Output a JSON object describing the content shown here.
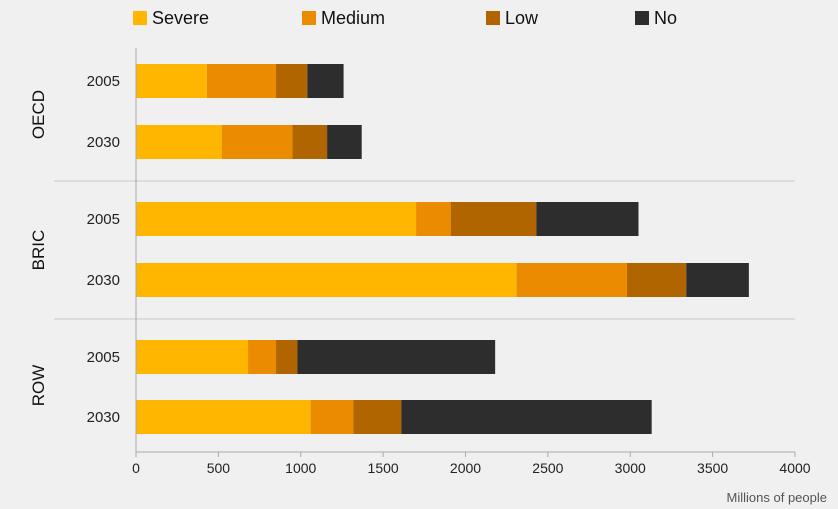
{
  "chart_data": {
    "type": "bar",
    "orientation": "horizontal",
    "stacked": true,
    "xlabel": "Millions of people",
    "xlim": [
      0,
      4000
    ],
    "xticks": [
      0,
      500,
      1000,
      1500,
      2000,
      2500,
      3000,
      3500,
      4000
    ],
    "legend_position": "top",
    "groups": [
      {
        "name": "OECD",
        "categories": [
          "2005",
          "2030"
        ]
      },
      {
        "name": "BRIC",
        "categories": [
          "2005",
          "2030"
        ]
      },
      {
        "name": "ROW",
        "categories": [
          "2005",
          "2030"
        ]
      }
    ],
    "series": [
      {
        "name": "Severe",
        "color": "#ffb600",
        "values": [
          430,
          520,
          1700,
          2310,
          680,
          1060
        ]
      },
      {
        "name": "Medium",
        "color": "#eb8c00",
        "values": [
          420,
          430,
          210,
          670,
          170,
          260
        ]
      },
      {
        "name": "Low",
        "color": "#b06500",
        "values": [
          190,
          210,
          520,
          360,
          130,
          290
        ]
      },
      {
        "name": "No",
        "color": "#2d2d2d",
        "values": [
          220,
          210,
          620,
          380,
          1200,
          1520
        ]
      }
    ]
  }
}
